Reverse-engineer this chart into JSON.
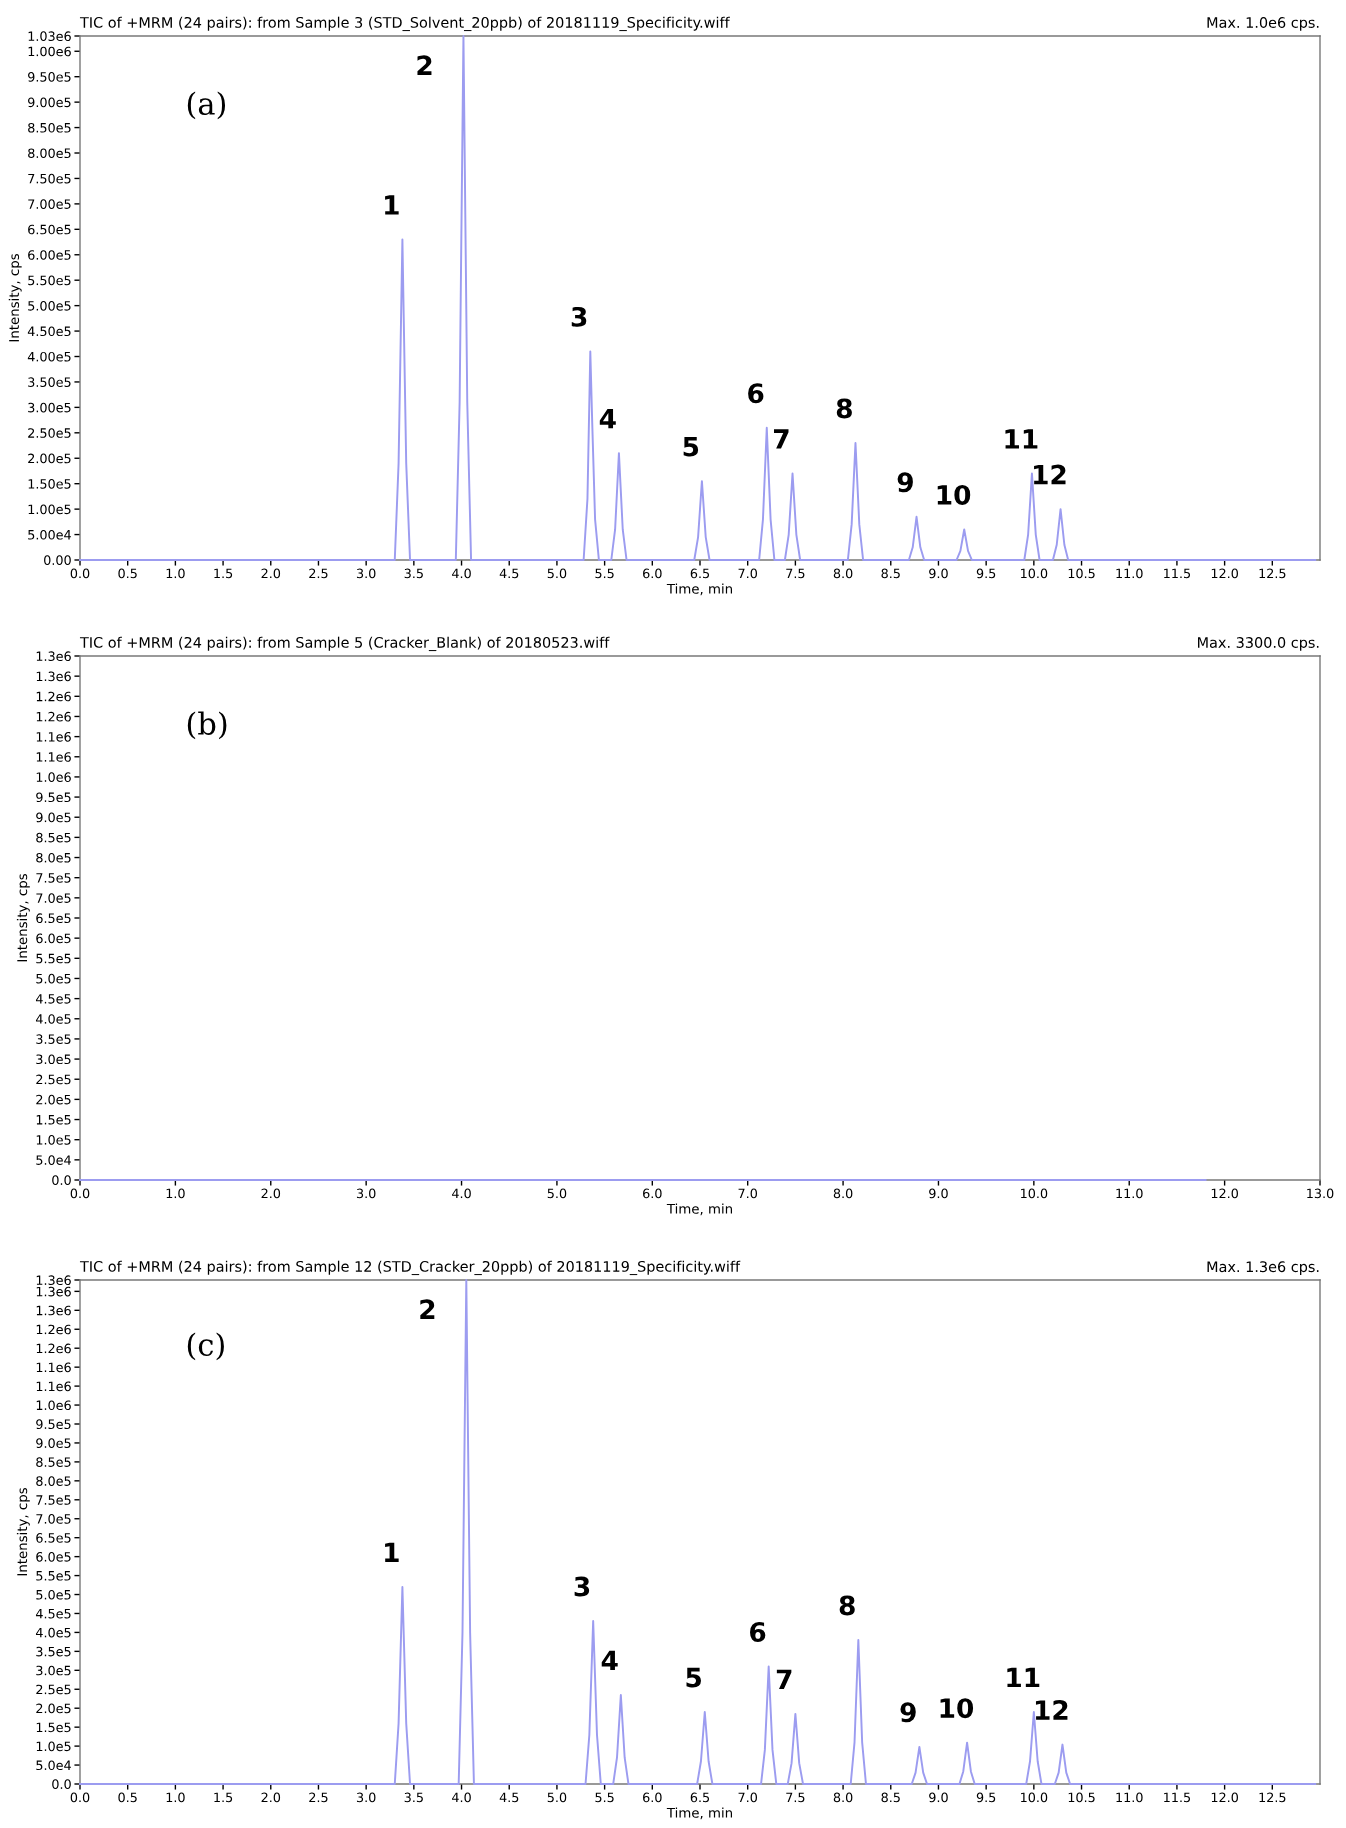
{
  "chart_data": [
    {
      "type": "line",
      "title": "TIC of +MRM (24 pairs): from Sample 3 (STD_Solvent_20ppb) of 20181119_Specificity.wiff",
      "xlabel": "Time, min",
      "ylabel": "Intensity, cps",
      "annotations": [
        "(a)",
        "Max. 1.0e6 cps.",
        {
          "text": "1",
          "x": 3.38,
          "y": 630000
        },
        {
          "text": "2",
          "x": 4.02,
          "y": 1030000
        },
        {
          "text": "3",
          "x": 5.35,
          "y": 410000
        },
        {
          "text": "4",
          "x": 5.65,
          "y": 210000
        },
        {
          "text": "5",
          "x": 6.52,
          "y": 155000
        },
        {
          "text": "6",
          "x": 7.2,
          "y": 260000
        },
        {
          "text": "7",
          "x": 7.47,
          "y": 170000
        },
        {
          "text": "8",
          "x": 8.13,
          "y": 230000
        },
        {
          "text": "9",
          "x": 8.77,
          "y": 85000
        },
        {
          "text": "10",
          "x": 9.27,
          "y": 60000
        },
        {
          "text": "11",
          "x": 9.98,
          "y": 170000
        },
        {
          "text": "12",
          "x": 10.28,
          "y": 100000
        }
      ],
      "series": [
        {
          "color": "#9c9cf0",
          "x": [
            0,
            3.3,
            3.34,
            3.38,
            3.42,
            3.46,
            3.94,
            3.98,
            4.02,
            4.06,
            4.1,
            5.28,
            5.32,
            5.35,
            5.37,
            5.4,
            5.44,
            5.57,
            5.61,
            5.65,
            5.69,
            5.73,
            6.44,
            6.48,
            6.52,
            6.56,
            6.6,
            7.12,
            7.16,
            7.2,
            7.24,
            7.28,
            7.39,
            7.43,
            7.47,
            7.51,
            7.55,
            8.05,
            8.09,
            8.13,
            8.17,
            8.21,
            8.69,
            8.73,
            8.77,
            8.81,
            8.85,
            9.19,
            9.23,
            9.27,
            9.31,
            9.35,
            9.9,
            9.94,
            9.98,
            10.02,
            10.06,
            10.2,
            10.24,
            10.28,
            10.32,
            10.36,
            12.95
          ],
          "values": [
            0,
            0,
            190000,
            630000,
            190000,
            0,
            0,
            310000,
            1030000,
            310000,
            0,
            0,
            120000,
            410000,
            270000,
            80000,
            0,
            0,
            60000,
            210000,
            60000,
            0,
            0,
            45000,
            155000,
            45000,
            0,
            0,
            80000,
            260000,
            80000,
            0,
            0,
            50000,
            170000,
            50000,
            0,
            0,
            70000,
            230000,
            70000,
            0,
            0,
            25000,
            85000,
            25000,
            0,
            0,
            18000,
            60000,
            18000,
            0,
            0,
            50000,
            170000,
            50000,
            0,
            0,
            30000,
            100000,
            30000,
            0,
            0
          ]
        }
      ],
      "xlim": [
        0,
        13
      ],
      "ylim": [
        0,
        1030000
      ],
      "xticks": [
        {
          "value": 0,
          "label": "0.0"
        },
        {
          "value": 0.5,
          "label": "0.5"
        },
        {
          "value": 1,
          "label": "1.0"
        },
        {
          "value": 1.5,
          "label": "1.5"
        },
        {
          "value": 2,
          "label": "2.0"
        },
        {
          "value": 2.5,
          "label": "2.5"
        },
        {
          "value": 3,
          "label": "3.0"
        },
        {
          "value": 3.5,
          "label": "3.5"
        },
        {
          "value": 4,
          "label": "4.0"
        },
        {
          "value": 4.5,
          "label": "4.5"
        },
        {
          "value": 5,
          "label": "5.0"
        },
        {
          "value": 5.5,
          "label": "5.5"
        },
        {
          "value": 6,
          "label": "6.0"
        },
        {
          "value": 6.5,
          "label": "6.5"
        },
        {
          "value": 7,
          "label": "7.0"
        },
        {
          "value": 7.5,
          "label": "7.5"
        },
        {
          "value": 8,
          "label": "8.0"
        },
        {
          "value": 8.5,
          "label": "8.5"
        },
        {
          "value": 9,
          "label": "9.0"
        },
        {
          "value": 9.5,
          "label": "9.5"
        },
        {
          "value": 10,
          "label": "10.0"
        },
        {
          "value": 10.5,
          "label": "10.5"
        },
        {
          "value": 11,
          "label": "11.0"
        },
        {
          "value": 11.5,
          "label": "11.5"
        },
        {
          "value": 12,
          "label": "12.0"
        },
        {
          "value": 12.5,
          "label": "12.5"
        }
      ],
      "yticks": [
        {
          "value": 0,
          "label": "0.00"
        },
        {
          "value": 50000,
          "label": "5.00e4"
        },
        {
          "value": 100000,
          "label": "1.00e5"
        },
        {
          "value": 150000,
          "label": "1.50e5"
        },
        {
          "value": 200000,
          "label": "2.00e5"
        },
        {
          "value": 250000,
          "label": "2.50e5"
        },
        {
          "value": 300000,
          "label": "3.00e5"
        },
        {
          "value": 350000,
          "label": "3.50e5"
        },
        {
          "value": 400000,
          "label": "4.00e5"
        },
        {
          "value": 450000,
          "label": "4.50e5"
        },
        {
          "value": 500000,
          "label": "5.00e5"
        },
        {
          "value": 550000,
          "label": "5.50e5"
        },
        {
          "value": 600000,
          "label": "6.00e5"
        },
        {
          "value": 650000,
          "label": "6.50e5"
        },
        {
          "value": 700000,
          "label": "7.00e5"
        },
        {
          "value": 750000,
          "label": "7.50e5"
        },
        {
          "value": 800000,
          "label": "8.00e5"
        },
        {
          "value": 850000,
          "label": "8.50e5"
        },
        {
          "value": 900000,
          "label": "9.00e5"
        },
        {
          "value": 950000,
          "label": "9.50e5"
        },
        {
          "value": 1000000,
          "label": "1.00e6"
        },
        {
          "value": 1030000,
          "label": "1.03e6"
        }
      ],
      "grid": false,
      "legend": false
    },
    {
      "type": "line",
      "title": "TIC of +MRM (24 pairs): from Sample 5 (Cracker_Blank) of 20180523.wiff",
      "xlabel": "Time, min",
      "ylabel": "Intensity, cps",
      "annotations": [
        "(b)",
        "Max. 3300.0 cps."
      ],
      "series": [
        {
          "color": "#9c9cf0",
          "x": [
            0,
            3,
            6,
            9,
            11.8
          ],
          "values": [
            0,
            0,
            0,
            0,
            0
          ]
        }
      ],
      "xlim": [
        0,
        13
      ],
      "ylim": [
        0,
        1300000
      ],
      "xticks": [
        {
          "value": 0,
          "label": "0.0"
        },
        {
          "value": 1,
          "label": "1.0"
        },
        {
          "value": 2,
          "label": "2.0"
        },
        {
          "value": 3,
          "label": "3.0"
        },
        {
          "value": 4,
          "label": "4.0"
        },
        {
          "value": 5,
          "label": "5.0"
        },
        {
          "value": 6,
          "label": "6.0"
        },
        {
          "value": 7,
          "label": "7.0"
        },
        {
          "value": 8,
          "label": "8.0"
        },
        {
          "value": 9,
          "label": "9.0"
        },
        {
          "value": 10,
          "label": "10.0"
        },
        {
          "value": 11,
          "label": "11.0"
        },
        {
          "value": 12,
          "label": "12.0"
        },
        {
          "value": 13,
          "label": "13.0"
        }
      ],
      "yticks": [
        {
          "value": 0,
          "label": "0.0"
        },
        {
          "value": 50000,
          "label": "5.0e4"
        },
        {
          "value": 100000,
          "label": "1.0e5"
        },
        {
          "value": 150000,
          "label": "1.5e5"
        },
        {
          "value": 200000,
          "label": "2.0e5"
        },
        {
          "value": 250000,
          "label": "2.5e5"
        },
        {
          "value": 300000,
          "label": "3.0e5"
        },
        {
          "value": 350000,
          "label": "3.5e5"
        },
        {
          "value": 400000,
          "label": "4.0e5"
        },
        {
          "value": 450000,
          "label": "4.5e5"
        },
        {
          "value": 500000,
          "label": "5.0e5"
        },
        {
          "value": 550000,
          "label": "5.5e5"
        },
        {
          "value": 600000,
          "label": "6.0e5"
        },
        {
          "value": 650000,
          "label": "6.5e5"
        },
        {
          "value": 700000,
          "label": "7.0e5"
        },
        {
          "value": 750000,
          "label": "7.5e5"
        },
        {
          "value": 800000,
          "label": "8.0e5"
        },
        {
          "value": 850000,
          "label": "8.5e5"
        },
        {
          "value": 900000,
          "label": "9.0e5"
        },
        {
          "value": 950000,
          "label": "9.5e5"
        },
        {
          "value": 1000000,
          "label": "1.0e6"
        },
        {
          "value": 1050000,
          "label": "1.1e6"
        },
        {
          "value": 1100000,
          "label": "1.1e6"
        },
        {
          "value": 1150000,
          "label": "1.2e6"
        },
        {
          "value": 1200000,
          "label": "1.2e6"
        },
        {
          "value": 1250000,
          "label": "1.3e6"
        },
        {
          "value": 1300000,
          "label": "1.3e6"
        }
      ],
      "grid": false,
      "legend": false
    },
    {
      "type": "line",
      "title": "TIC of +MRM (24 pairs): from Sample 12 (STD_Cracker_20ppb) of 20181119_Specificity.wiff",
      "xlabel": "Time, min",
      "ylabel": "Intensity, cps",
      "annotations": [
        "(c)",
        "Max. 1.3e6 cps.",
        {
          "text": "1",
          "x": 3.38,
          "y": 520000
        },
        {
          "text": "2",
          "x": 4.05,
          "y": 1330000
        },
        {
          "text": "3",
          "x": 5.38,
          "y": 430000
        },
        {
          "text": "4",
          "x": 5.67,
          "y": 235000
        },
        {
          "text": "5",
          "x": 6.55,
          "y": 190000
        },
        {
          "text": "6",
          "x": 7.22,
          "y": 310000
        },
        {
          "text": "7",
          "x": 7.5,
          "y": 185000
        },
        {
          "text": "8",
          "x": 8.16,
          "y": 380000
        },
        {
          "text": "9",
          "x": 8.8,
          "y": 98000
        },
        {
          "text": "10",
          "x": 9.3,
          "y": 109000
        },
        {
          "text": "11",
          "x": 10.0,
          "y": 190000
        },
        {
          "text": "12",
          "x": 10.3,
          "y": 104000
        }
      ],
      "series": [
        {
          "color": "#9c9cf0",
          "x": [
            0,
            3.3,
            3.34,
            3.38,
            3.42,
            3.46,
            3.97,
            4.01,
            4.05,
            4.09,
            4.13,
            5.3,
            5.34,
            5.38,
            5.42,
            5.46,
            5.59,
            5.63,
            5.67,
            5.71,
            5.75,
            6.47,
            6.51,
            6.55,
            6.59,
            6.63,
            7.14,
            7.18,
            7.22,
            7.26,
            7.3,
            7.42,
            7.46,
            7.5,
            7.54,
            7.58,
            8.08,
            8.12,
            8.16,
            8.2,
            8.24,
            8.72,
            8.76,
            8.8,
            8.84,
            8.88,
            9.22,
            9.26,
            9.3,
            9.34,
            9.38,
            9.92,
            9.96,
            10.0,
            10.04,
            10.08,
            10.22,
            10.26,
            10.3,
            10.34,
            10.38,
            12.95
          ],
          "values": [
            0,
            0,
            160000,
            520000,
            160000,
            0,
            0,
            400000,
            1330000,
            400000,
            0,
            0,
            130000,
            430000,
            130000,
            0,
            0,
            70000,
            235000,
            70000,
            0,
            0,
            60000,
            190000,
            60000,
            0,
            0,
            90000,
            310000,
            90000,
            0,
            0,
            55000,
            185000,
            55000,
            0,
            0,
            110000,
            380000,
            110000,
            0,
            0,
            30000,
            98000,
            30000,
            0,
            0,
            33000,
            109000,
            33000,
            0,
            0,
            60000,
            190000,
            60000,
            0,
            0,
            30000,
            104000,
            30000,
            0,
            0
          ]
        }
      ],
      "xlim": [
        0,
        13
      ],
      "ylim": [
        0,
        1330000
      ],
      "xticks": [
        {
          "value": 0,
          "label": "0.0"
        },
        {
          "value": 0.5,
          "label": "0.5"
        },
        {
          "value": 1,
          "label": "1.0"
        },
        {
          "value": 1.5,
          "label": "1.5"
        },
        {
          "value": 2,
          "label": "2.0"
        },
        {
          "value": 2.5,
          "label": "2.5"
        },
        {
          "value": 3,
          "label": "3.0"
        },
        {
          "value": 3.5,
          "label": "3.5"
        },
        {
          "value": 4,
          "label": "4.0"
        },
        {
          "value": 4.5,
          "label": "4.5"
        },
        {
          "value": 5,
          "label": "5.0"
        },
        {
          "value": 5.5,
          "label": "5.5"
        },
        {
          "value": 6,
          "label": "6.0"
        },
        {
          "value": 6.5,
          "label": "6.5"
        },
        {
          "value": 7,
          "label": "7.0"
        },
        {
          "value": 7.5,
          "label": "7.5"
        },
        {
          "value": 8,
          "label": "8.0"
        },
        {
          "value": 8.5,
          "label": "8.5"
        },
        {
          "value": 9,
          "label": "9.0"
        },
        {
          "value": 9.5,
          "label": "9.5"
        },
        {
          "value": 10,
          "label": "10.0"
        },
        {
          "value": 10.5,
          "label": "10.5"
        },
        {
          "value": 11,
          "label": "11.0"
        },
        {
          "value": 11.5,
          "label": "11.5"
        },
        {
          "value": 12,
          "label": "12.0"
        },
        {
          "value": 12.5,
          "label": "12.5"
        }
      ],
      "yticks": [
        {
          "value": 0,
          "label": "0.0"
        },
        {
          "value": 50000,
          "label": "5.0e4"
        },
        {
          "value": 100000,
          "label": "1.0e5"
        },
        {
          "value": 150000,
          "label": "1.5e5"
        },
        {
          "value": 200000,
          "label": "2.0e5"
        },
        {
          "value": 250000,
          "label": "2.5e5"
        },
        {
          "value": 300000,
          "label": "3.0e5"
        },
        {
          "value": 350000,
          "label": "3.5e5"
        },
        {
          "value": 400000,
          "label": "4.0e5"
        },
        {
          "value": 450000,
          "label": "4.5e5"
        },
        {
          "value": 500000,
          "label": "5.0e5"
        },
        {
          "value": 550000,
          "label": "5.5e5"
        },
        {
          "value": 600000,
          "label": "6.0e5"
        },
        {
          "value": 650000,
          "label": "6.5e5"
        },
        {
          "value": 700000,
          "label": "7.0e5"
        },
        {
          "value": 750000,
          "label": "7.5e5"
        },
        {
          "value": 800000,
          "label": "8.0e5"
        },
        {
          "value": 850000,
          "label": "8.5e5"
        },
        {
          "value": 900000,
          "label": "9.0e5"
        },
        {
          "value": 950000,
          "label": "9.5e5"
        },
        {
          "value": 1000000,
          "label": "1.0e6"
        },
        {
          "value": 1050000,
          "label": "1.1e6"
        },
        {
          "value": 1100000,
          "label": "1.1e6"
        },
        {
          "value": 1150000,
          "label": "1.2e6"
        },
        {
          "value": 1200000,
          "label": "1.2e6"
        },
        {
          "value": 1250000,
          "label": "1.3e6"
        },
        {
          "value": 1300000,
          "label": "1.3e6"
        },
        {
          "value": 1330000,
          "label": "1.3e6"
        }
      ],
      "grid": false,
      "legend": false
    }
  ]
}
